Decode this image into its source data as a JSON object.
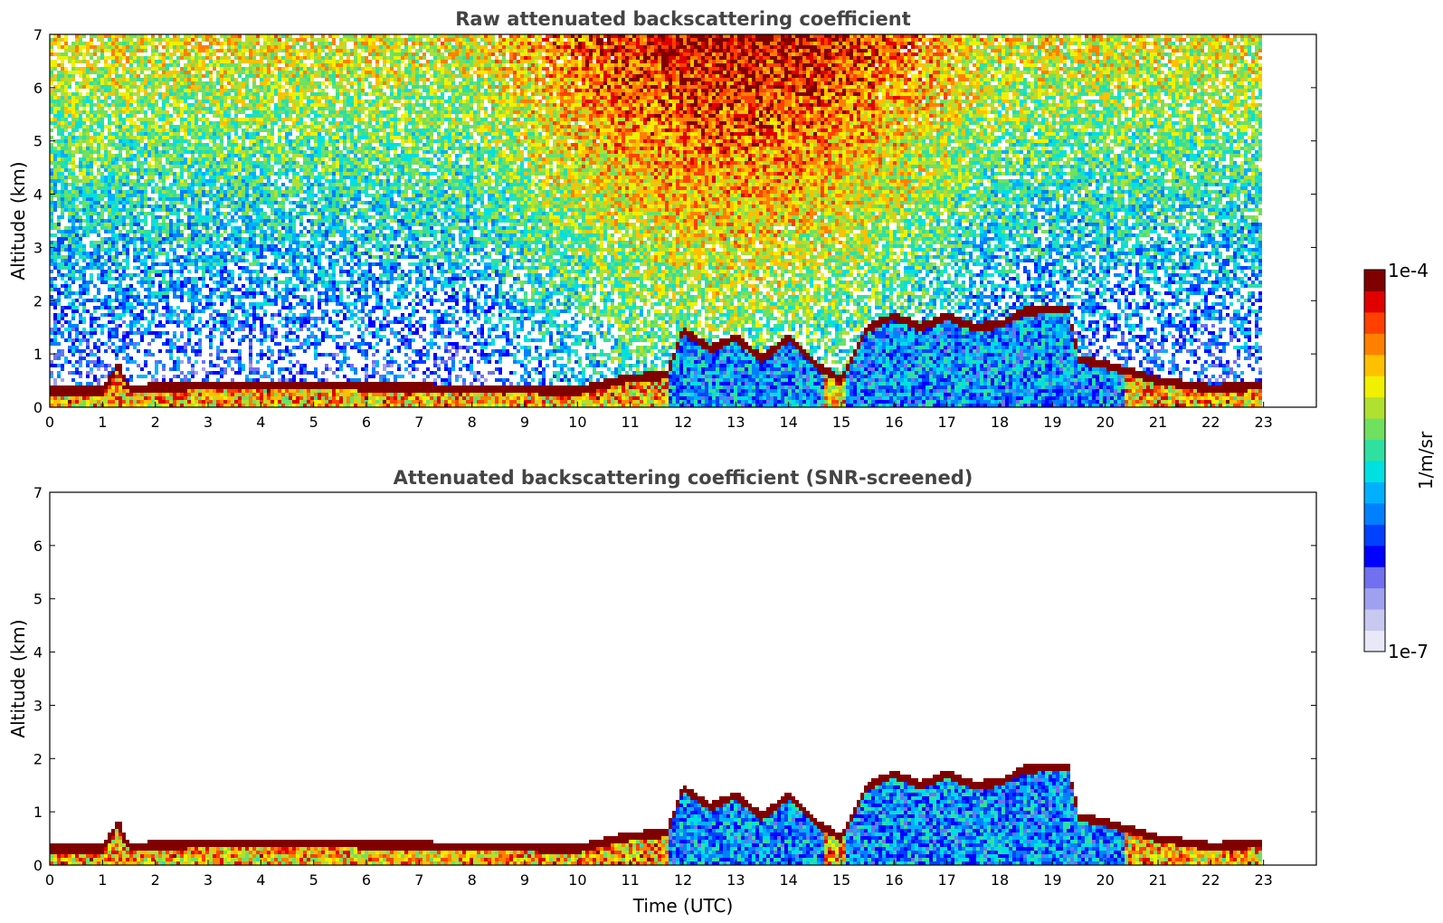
{
  "chart_data": [
    {
      "type": "heatmap",
      "title": "Raw attenuated backscattering coefficient",
      "xlabel": "",
      "ylabel": "Altitude (km)",
      "xlim": [
        0,
        24
      ],
      "ylim": [
        0,
        7
      ],
      "xticks": [
        "0",
        "1",
        "2",
        "3",
        "4",
        "5",
        "6",
        "7",
        "8",
        "9",
        "10",
        "11",
        "12",
        "13",
        "14",
        "15",
        "16",
        "17",
        "18",
        "19",
        "20",
        "21",
        "22",
        "23"
      ],
      "yticks": [
        "0",
        "1",
        "2",
        "3",
        "4",
        "5",
        "6",
        "7"
      ],
      "data_end_time": 23,
      "layer_top_km": [
        [
          0,
          0.3
        ],
        [
          1,
          0.3
        ],
        [
          1.3,
          0.8
        ],
        [
          1.5,
          0.35
        ],
        [
          3,
          0.4
        ],
        [
          5,
          0.4
        ],
        [
          8,
          0.35
        ],
        [
          10,
          0.3
        ],
        [
          11,
          0.55
        ],
        [
          11.7,
          0.6
        ],
        [
          12,
          1.45
        ],
        [
          12.5,
          1.1
        ],
        [
          13,
          1.3
        ],
        [
          13.5,
          0.9
        ],
        [
          14,
          1.3
        ],
        [
          14.5,
          0.8
        ],
        [
          15,
          0.5
        ],
        [
          15.5,
          1.5
        ],
        [
          16,
          1.7
        ],
        [
          16.5,
          1.5
        ],
        [
          17,
          1.7
        ],
        [
          17.5,
          1.5
        ],
        [
          18,
          1.55
        ],
        [
          18.5,
          1.8
        ],
        [
          19.3,
          1.85
        ],
        [
          19.5,
          0.9
        ],
        [
          20,
          0.8
        ],
        [
          21,
          0.5
        ],
        [
          22,
          0.35
        ],
        [
          23,
          0.4
        ]
      ],
      "grid": false
    },
    {
      "type": "heatmap",
      "title": "Attenuated backscattering coefficient (SNR-screened)",
      "xlabel": "Time (UTC)",
      "ylabel": "Altitude (km)",
      "xlim": [
        0,
        24
      ],
      "ylim": [
        0,
        7
      ],
      "xticks": [
        "0",
        "1",
        "2",
        "3",
        "4",
        "5",
        "6",
        "7",
        "8",
        "9",
        "10",
        "11",
        "12",
        "13",
        "14",
        "15",
        "16",
        "17",
        "18",
        "19",
        "20",
        "21",
        "22",
        "23"
      ],
      "yticks": [
        "0",
        "1",
        "2",
        "3",
        "4",
        "5",
        "6",
        "7"
      ],
      "data_end_time": 23,
      "grid": false
    }
  ],
  "colorbar": {
    "max_label": "1e-4",
    "min_label": "1e-7",
    "unit_label": "1/m/sr",
    "colors": [
      "#e8e8f8",
      "#c8c8f0",
      "#a0a0f0",
      "#7070f0",
      "#0000ff",
      "#0040ff",
      "#0080ff",
      "#00b0ff",
      "#00e0e0",
      "#30e0a0",
      "#70e060",
      "#b0e030",
      "#f0f000",
      "#ffc000",
      "#ff8000",
      "#ff4000",
      "#e00000",
      "#800000"
    ]
  }
}
